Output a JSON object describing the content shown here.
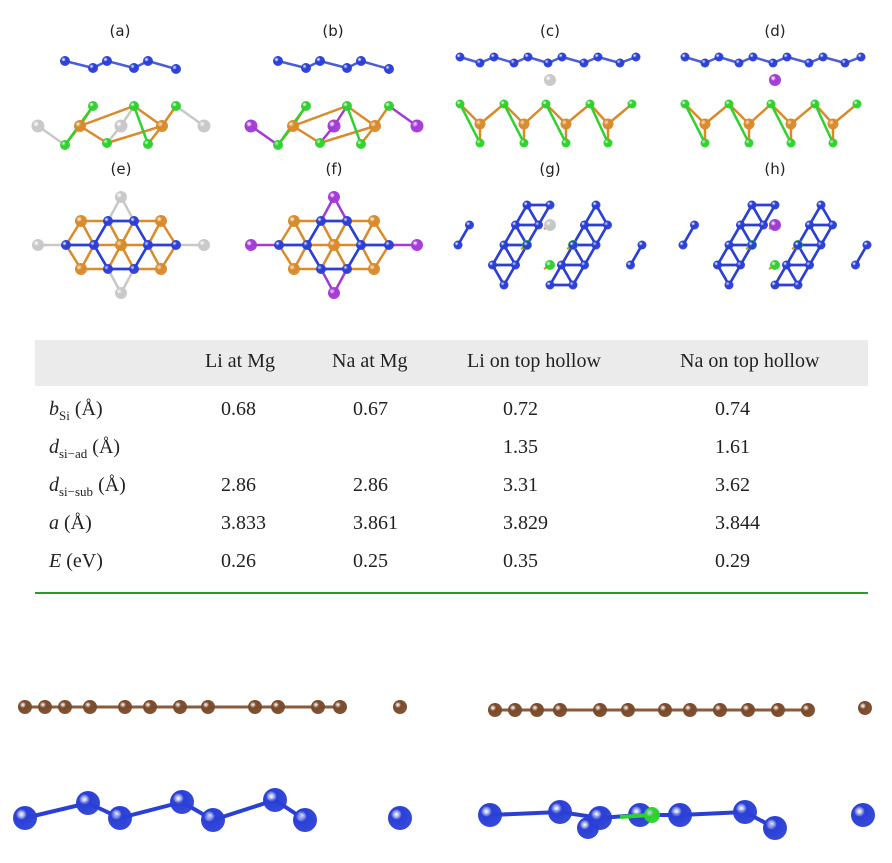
{
  "panels": {
    "a": "(a)",
    "b": "(b)",
    "c": "(c)",
    "d": "(d)",
    "e": "(e)",
    "f": "(f)",
    "g": "(g)",
    "h": "(h)"
  },
  "table": {
    "columns": [
      "Li at Mg",
      "Na at Mg",
      "Li on top hollow",
      "Na on top hollow"
    ],
    "rows": [
      {
        "sym": "b",
        "sub": "Si",
        "unit": "(Å)",
        "values": [
          "0.68",
          "0.67",
          "0.72",
          "0.74"
        ]
      },
      {
        "sym": "d",
        "sub": "si−ad",
        "unit": "(Å)",
        "values": [
          "",
          "",
          "1.35",
          "1.61"
        ]
      },
      {
        "sym": "d",
        "sub": "si−sub",
        "unit": "(Å)",
        "values": [
          "2.86",
          "2.86",
          "3.31",
          "3.62"
        ]
      },
      {
        "sym": "a",
        "sub": "",
        "unit": "(Å)",
        "values": [
          "3.833",
          "3.861",
          "3.829",
          "3.844"
        ]
      },
      {
        "sym": "E",
        "sub": "",
        "unit": "(eV)",
        "values": [
          "0.26",
          "0.25",
          "0.35",
          "0.29"
        ]
      }
    ]
  },
  "colors": {
    "si": "#2a3fd6",
    "cl": "#2ed12e",
    "mg": "#d98a2b",
    "li": "#c8c8c8",
    "na": "#a33ad6",
    "c": "#7a4a2a",
    "rule": "#2a9a2a"
  }
}
